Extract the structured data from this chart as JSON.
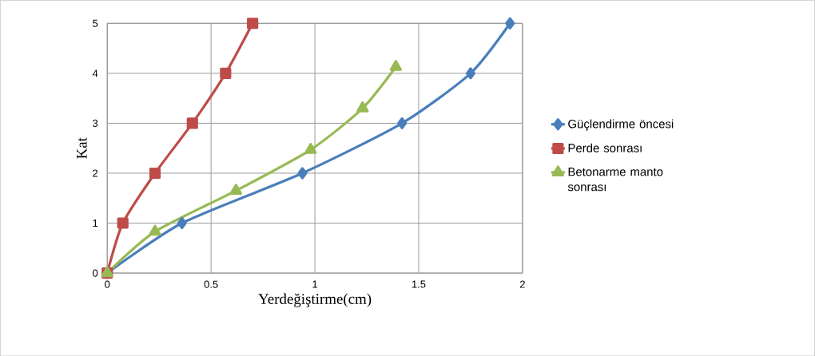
{
  "chart_data": {
    "type": "line",
    "xlabel": "Yerdeğiştirme(cm)",
    "ylabel": "Kat",
    "xlim": [
      0,
      2
    ],
    "xticks": [
      0,
      0.5,
      1,
      1.5,
      2
    ],
    "ylim": [
      0,
      5
    ],
    "yticks": [
      0,
      1,
      2,
      3,
      4,
      5
    ],
    "grid": true,
    "legend": "right",
    "series": [
      {
        "name": "Güçlendirme öncesi",
        "color": "#4a7ebb",
        "marker": "diamond",
        "x": [
          0,
          0.36,
          0.94,
          1.42,
          1.75,
          1.94
        ],
        "values": [
          0,
          1,
          2,
          3,
          4,
          5
        ]
      },
      {
        "name": "Perde sonrası",
        "color": "#be4b48",
        "marker": "square",
        "x": [
          0,
          0.075,
          0.23,
          0.41,
          0.57,
          0.7
        ],
        "values": [
          0,
          1,
          2,
          3,
          4,
          5
        ]
      },
      {
        "name": "Betonarme manto sonrası",
        "color": "#98b954",
        "marker": "triangle",
        "x": [
          0,
          0.23,
          0.62,
          0.98,
          1.23,
          1.39
        ],
        "values": [
          0,
          0.83,
          1.65,
          2.47,
          3.3,
          4.13
        ]
      }
    ]
  }
}
